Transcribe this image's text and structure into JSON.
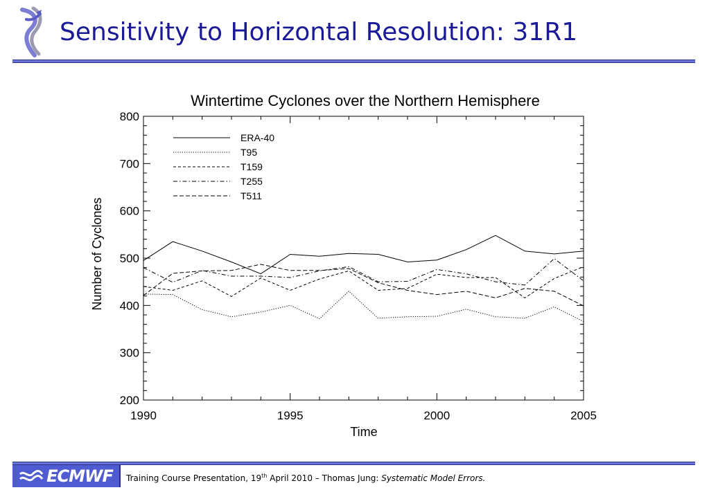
{
  "slide": {
    "title": "Sensitivity to Horizontal Resolution: 31R1"
  },
  "footer": {
    "logo_text": "ECMWF",
    "text_before_sup": "Training Course Presentation, 19",
    "sup": "th",
    "text_after_sup": " April 2010 – Thomas Jung: ",
    "italic_text": "Systematic Model Errors."
  },
  "colors": {
    "title": "#1a1a99",
    "rule": "#6b73d6",
    "logo_bg": "#4f5bd0"
  },
  "chart_data": {
    "type": "line",
    "title": "Wintertime Cyclones over the Northern Hemisphere",
    "xlabel": "Time",
    "ylabel": "Number of Cyclones",
    "xlim": [
      1990,
      2005
    ],
    "ylim": [
      200,
      800
    ],
    "x_ticks": [
      1990,
      1995,
      2000,
      2005
    ],
    "y_ticks": [
      200,
      300,
      400,
      500,
      600,
      700,
      800
    ],
    "grid": false,
    "legend_position": "top-left",
    "x": [
      1990,
      1991,
      1992,
      1993,
      1994,
      1995,
      1996,
      1997,
      1998,
      1999,
      2000,
      2001,
      2002,
      2003,
      2004,
      2005
    ],
    "series": [
      {
        "name": "ERA-40",
        "dash": "solid",
        "values": [
          495,
          535,
          515,
          492,
          467,
          508,
          504,
          510,
          508,
          492,
          496,
          518,
          548,
          515,
          509,
          515
        ]
      },
      {
        "name": "T95",
        "dash": "dotted",
        "values": [
          424,
          423,
          391,
          376,
          386,
          400,
          372,
          430,
          373,
          376,
          377,
          392,
          376,
          373,
          397,
          366
        ]
      },
      {
        "name": "T159",
        "dash": "dashed",
        "values": [
          440,
          432,
          452,
          419,
          458,
          432,
          456,
          473,
          432,
          436,
          466,
          459,
          459,
          416,
          457,
          482
        ]
      },
      {
        "name": "T255",
        "dash": "dashdot",
        "values": [
          480,
          449,
          474,
          462,
          462,
          459,
          473,
          482,
          450,
          451,
          476,
          467,
          450,
          443,
          499,
          452
        ]
      },
      {
        "name": "T511",
        "dash": "longdash",
        "values": [
          421,
          468,
          473,
          474,
          487,
          474,
          474,
          478,
          448,
          432,
          423,
          430,
          416,
          436,
          430,
          399
        ]
      }
    ]
  }
}
